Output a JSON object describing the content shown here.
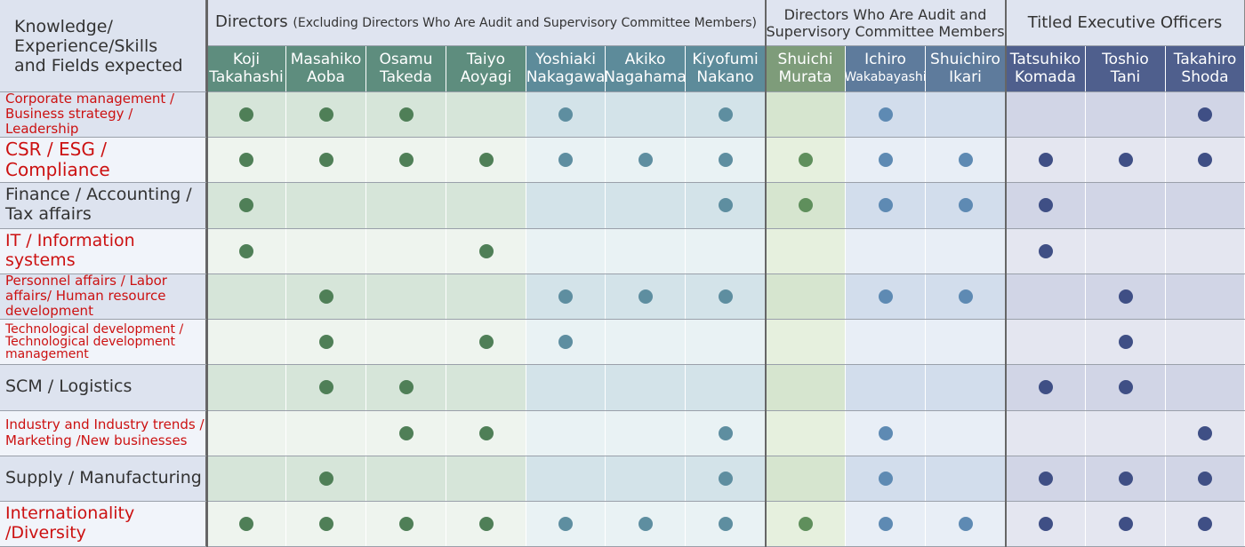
{
  "corner": {
    "line1": "Knowledge/",
    "line2": "Experience/Skills",
    "line3": "and Fields expected"
  },
  "groups": [
    {
      "title": "Directors",
      "subtitle": "(Excluding Directors Who Are Audit and Supervisory Committee Members)",
      "span": 7
    },
    {
      "title": "Directors Who Are Audit and Supervisory Committee Members",
      "subtitle": "",
      "span": 3
    },
    {
      "title": "Titled Executive Officers",
      "subtitle": "",
      "span": 3
    }
  ],
  "columns": [
    {
      "first": "Koji",
      "last": "Takahashi",
      "group": 0
    },
    {
      "first": "Masahiko",
      "last": "Aoba",
      "group": 0
    },
    {
      "first": "Osamu",
      "last": "Takeda",
      "group": 0
    },
    {
      "first": "Taiyo",
      "last": "Aoyagi",
      "group": 0
    },
    {
      "first": "Yoshiaki",
      "last": "Nakagawa",
      "group": 1
    },
    {
      "first": "Akiko",
      "last": "Nagahama",
      "group": 1
    },
    {
      "first": "Kiyofumi",
      "last": "Nakano",
      "group": 1
    },
    {
      "first": "Shuichi",
      "last": "Murata",
      "group": 2
    },
    {
      "first": "Ichiro",
      "last": "Wakabayashi",
      "group": 3
    },
    {
      "first": "Shuichiro",
      "last": "Ikari",
      "group": 3
    },
    {
      "first": "Tatsuhiko",
      "last": "Komada",
      "group": 4
    },
    {
      "first": "Toshio",
      "last": "Tani",
      "group": 4
    },
    {
      "first": "Takahiro",
      "last": "Shoda",
      "group": 4
    }
  ],
  "rows": [
    {
      "label": "Corporate management / Business strategy / Leadership",
      "color": "#cc1111",
      "size": "s",
      "marks": [
        1,
        1,
        1,
        0,
        1,
        0,
        1,
        0,
        1,
        0,
        0,
        0,
        1
      ]
    },
    {
      "label": "CSR / ESG / Compliance",
      "color": "#cc1111",
      "size": "l",
      "marks": [
        1,
        1,
        1,
        1,
        1,
        1,
        1,
        1,
        1,
        1,
        1,
        1,
        1
      ]
    },
    {
      "label": "Finance / Accounting / Tax affairs",
      "color": "#333333",
      "size": "m",
      "marks": [
        1,
        0,
        0,
        0,
        0,
        0,
        1,
        1,
        1,
        1,
        1,
        0,
        0
      ]
    },
    {
      "label": "IT / Information systems",
      "color": "#cc1111",
      "size": "m",
      "marks": [
        1,
        0,
        0,
        1,
        0,
        0,
        0,
        0,
        0,
        0,
        1,
        0,
        0
      ]
    },
    {
      "label": "Personnel affairs / Labor affairs/ Human resource development",
      "color": "#cc1111",
      "size": "s",
      "marks": [
        0,
        1,
        0,
        0,
        1,
        1,
        1,
        0,
        1,
        1,
        0,
        1,
        0
      ]
    },
    {
      "label": "Technological development / Technological development management",
      "color": "#cc1111",
      "size": "xs",
      "marks": [
        0,
        1,
        0,
        1,
        1,
        0,
        0,
        0,
        0,
        0,
        0,
        1,
        0
      ]
    },
    {
      "label": "SCM / Logistics",
      "color": "#333333",
      "size": "m",
      "marks": [
        0,
        1,
        1,
        0,
        0,
        0,
        0,
        0,
        0,
        0,
        1,
        1,
        0
      ]
    },
    {
      "label": "Industry and Industry trends / Marketing /New businesses",
      "color": "#cc1111",
      "size": "s",
      "marks": [
        0,
        0,
        1,
        1,
        0,
        0,
        1,
        0,
        1,
        0,
        0,
        0,
        1
      ]
    },
    {
      "label": "Supply / Manufacturing",
      "color": "#333333",
      "size": "m",
      "marks": [
        0,
        1,
        0,
        0,
        0,
        0,
        1,
        0,
        1,
        0,
        1,
        1,
        1
      ]
    },
    {
      "label": "Internationality /Diversity",
      "color": "#cc1111",
      "size": "m",
      "marks": [
        1,
        1,
        1,
        1,
        1,
        1,
        1,
        1,
        1,
        1,
        1,
        1,
        1
      ]
    }
  ],
  "palette": {
    "header_bg": [
      "#5e8d7e",
      "#5d8b9a",
      "#7e9c7a",
      "#5e7b9c",
      "#4f5f8d"
    ],
    "dot": [
      "#4f7f57",
      "#5e8ea0",
      "#5f8f5c",
      "#5e8ab3",
      "#3f4f85"
    ],
    "body_even": [
      "#d6e5d9",
      "#d3e3e9",
      "#d6e5cf",
      "#d2ddec",
      "#d1d5e6"
    ],
    "body_odd": [
      "#eef4ee",
      "#e9f2f4",
      "#e6f0de",
      "#e8eef6",
      "#e4e6f0"
    ],
    "label_even": "#dde3ef",
    "label_odd": "#f1f4fa"
  }
}
